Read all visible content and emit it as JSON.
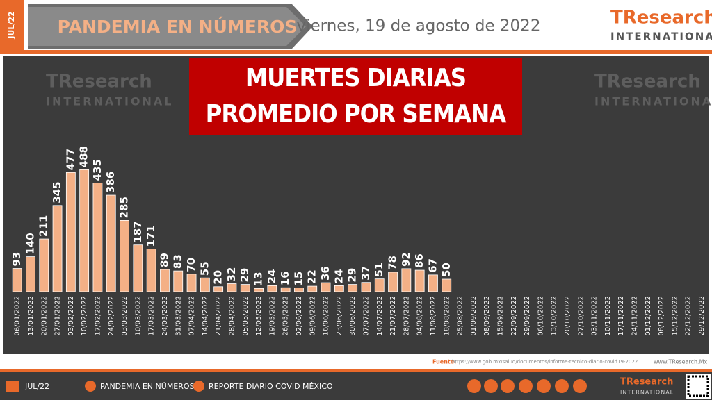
{
  "header": {
    "tag": "JUL/22",
    "section": "PANDEMIA EN NÚMEROS",
    "date": "viernes, 19 de agosto de 2022",
    "logo": {
      "brand": "TResearch",
      "sub": "INTERNATIONAL"
    }
  },
  "chart_data": {
    "type": "bar",
    "title": "MUERTES DIARIAS PROMEDIO POR SEMANA",
    "color": "#f4b086",
    "categories": [
      "06/01/2022",
      "13/01/2022",
      "20/01/2022",
      "27/01/2022",
      "03/02/2022",
      "10/02/2022",
      "17/02/2022",
      "24/02/2022",
      "03/03/2022",
      "10/03/2022",
      "17/03/2022",
      "24/03/2022",
      "31/03/2022",
      "07/04/2022",
      "14/04/2022",
      "21/04/2022",
      "28/04/2022",
      "05/05/2022",
      "12/05/2022",
      "19/05/2022",
      "26/05/2022",
      "02/06/2022",
      "09/06/2022",
      "16/06/2022",
      "23/06/2022",
      "30/06/2022",
      "07/07/2022",
      "14/07/2022",
      "21/07/2022",
      "28/07/2022",
      "04/08/2022",
      "11/08/2022",
      "18/08/2022",
      "25/08/2022",
      "01/09/2022",
      "08/09/2022",
      "15/09/2022",
      "22/09/2022",
      "29/09/2022",
      "06/10/2022",
      "13/10/2022",
      "20/10/2022",
      "27/10/2022",
      "03/11/2022",
      "10/11/2022",
      "17/11/2022",
      "24/11/2022",
      "01/12/2022",
      "08/12/2022",
      "15/12/2022",
      "22/12/2022",
      "29/12/2022"
    ],
    "values": [
      93,
      140,
      211,
      345,
      477,
      488,
      435,
      386,
      285,
      187,
      171,
      89,
      83,
      70,
      55,
      20,
      32,
      29,
      13,
      24,
      16,
      15,
      22,
      36,
      24,
      29,
      37,
      51,
      78,
      92,
      86,
      67,
      50,
      null,
      null,
      null,
      null,
      null,
      null,
      null,
      null,
      null,
      null,
      null,
      null,
      null,
      null,
      null,
      null,
      null,
      null,
      null
    ]
  },
  "source": {
    "label": "Fuente:",
    "url": "https://www.gob.mx/salud/documentos/informe-tecnico-diario-covid19-2022",
    "site": "www.TResearch.Mx"
  },
  "footer": {
    "items": [
      "JUL/22",
      "PANDEMIA EN NÚMEROS",
      "REPORTE DIARIO COVID MÉXICO"
    ],
    "logo": {
      "brand": "TResearch",
      "sub": "INTERNATIONAL"
    }
  }
}
